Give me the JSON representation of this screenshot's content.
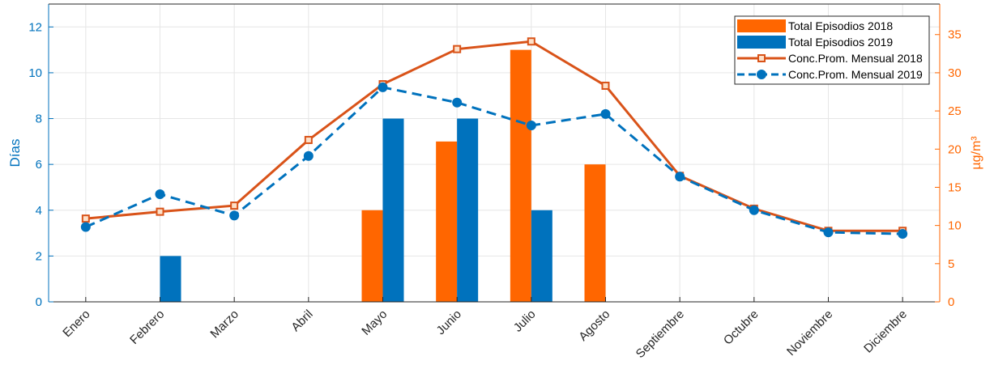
{
  "chart_data": {
    "type": "bar",
    "categories": [
      "Enero",
      "Febrero",
      "Marzo",
      "Abril",
      "Mayo",
      "Junio",
      "Julio",
      "Agosto",
      "Septiembre",
      "Octubre",
      "Noviembre",
      "Diciembre"
    ],
    "y_left": {
      "label": "Días",
      "lim": [
        0,
        13
      ],
      "ticks": [
        0,
        2,
        4,
        6,
        8,
        10,
        12
      ],
      "color": "#0072BD"
    },
    "y_right": {
      "label": "µg/m³",
      "lim": [
        0,
        39
      ],
      "ticks": [
        0,
        5,
        10,
        15,
        20,
        25,
        30,
        35
      ],
      "color": "#FF6600"
    },
    "grid": true,
    "legend_position": "top-right",
    "bar_series": [
      {
        "name": "Total Episodios 2018",
        "color": "#FF6600",
        "axis": "left",
        "values": [
          0,
          0,
          0,
          0,
          4,
          7,
          11,
          6,
          0,
          0,
          0,
          0
        ]
      },
      {
        "name": "Total Episodios 2019",
        "color": "#0072BD",
        "axis": "left",
        "values": [
          0,
          2,
          0,
          0,
          8,
          8,
          4,
          0,
          0,
          0,
          0,
          0
        ]
      }
    ],
    "line_series": [
      {
        "name": "Conc.Prom. Mensual 2018",
        "color": "#D95319",
        "axis": "right",
        "marker": "square",
        "dash": "solid",
        "values": [
          10.9,
          11.8,
          12.6,
          21.2,
          28.5,
          33.1,
          34.1,
          28.3,
          16.5,
          12.2,
          9.3,
          9.3
        ]
      },
      {
        "name": "Conc.Prom. Mensual 2019",
        "color": "#0072BD",
        "axis": "right",
        "marker": "circle",
        "dash": "dashed",
        "values": [
          9.8,
          14.1,
          11.3,
          19.1,
          28.1,
          26.1,
          23.1,
          24.6,
          16.4,
          12.0,
          9.1,
          8.9
        ]
      }
    ]
  }
}
